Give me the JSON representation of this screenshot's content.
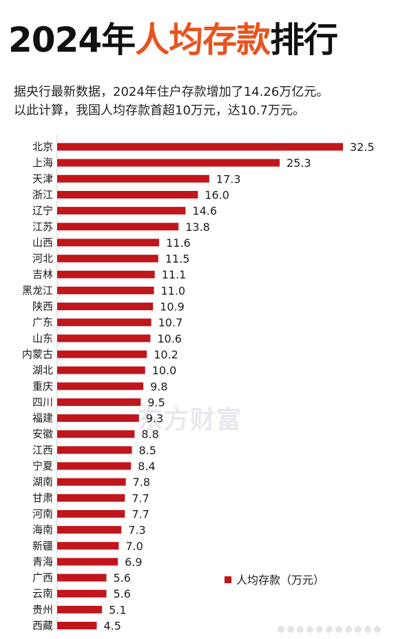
{
  "title": {
    "year_text": "2024年",
    "accent_text": "人均存款",
    "suffix_text": "排行"
  },
  "subtitle": {
    "line1": "据央行最新数据，2024年住户存款增加了14.26万亿元。",
    "line2": "以此计算，我国人均存款首超10万元，达10.7万元。"
  },
  "watermark": "东方财富",
  "colors": {
    "bar": "#c0161c",
    "accent": "#e8541e",
    "title": "#111111",
    "grid": "#cccccc"
  },
  "chart_data": {
    "type": "bar",
    "orientation": "horizontal",
    "title": "2024年人均存款排行",
    "categories": [
      "北京",
      "上海",
      "天津",
      "浙江",
      "辽宁",
      "江苏",
      "山西",
      "河北",
      "吉林",
      "黑龙江",
      "陕西",
      "广东",
      "山东",
      "内蒙古",
      "湖北",
      "重庆",
      "四川",
      "福建",
      "安徽",
      "江西",
      "宁夏",
      "湖南",
      "甘肃",
      "河南",
      "海南",
      "新疆",
      "青海",
      "广西",
      "云南",
      "贵州",
      "西藏"
    ],
    "series": [
      {
        "name": "人均存款（万元）",
        "values": [
          32.5,
          25.3,
          17.3,
          16.0,
          14.6,
          13.8,
          11.6,
          11.5,
          11.1,
          11.0,
          10.9,
          10.7,
          10.6,
          10.2,
          10.0,
          9.8,
          9.5,
          9.3,
          8.8,
          8.5,
          8.4,
          7.8,
          7.7,
          7.7,
          7.3,
          7.0,
          6.9,
          5.6,
          5.6,
          5.1,
          4.5
        ]
      }
    ],
    "value_labels": [
      "32.5",
      "25.3",
      "17.3",
      "16.0",
      "14.6",
      "13.8",
      "11.6",
      "11.5",
      "11.1",
      "11.0",
      "10.9",
      "10.7",
      "10.6",
      "10.2",
      "10.0",
      "9.8",
      "9.5",
      "9.3",
      "8.8",
      "8.5",
      "8.4",
      "7.8",
      "7.7",
      "7.7",
      "7.3",
      "7.0",
      "6.9",
      "5.6",
      "5.6",
      "5.1",
      "4.5"
    ],
    "xlim": [
      0,
      32.5
    ],
    "grid": false,
    "legend": {
      "position": "bottom-right",
      "label": "人均存款（万元）"
    }
  }
}
